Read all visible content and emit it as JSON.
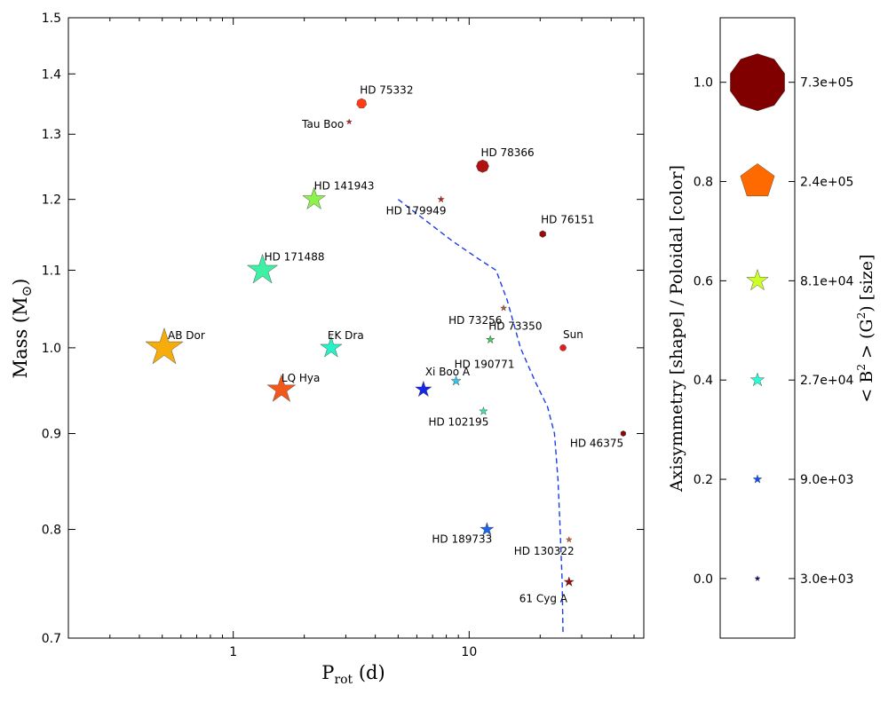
{
  "chart_data": [
    {
      "type": "scatter",
      "xscale": "log",
      "yscale": "log",
      "xlim": [
        0.2,
        55
      ],
      "ylim": [
        0.7,
        1.5
      ],
      "xlabel": {
        "main": "P",
        "sub": "rot",
        "unit": " (d)"
      },
      "ylabel": {
        "main": "Mass (M",
        "sym": "⊙",
        "end": ")"
      },
      "x_ticks": [
        {
          "value": 1,
          "label": "1"
        },
        {
          "value": 10,
          "label": "10"
        }
      ],
      "x_minor_ticks": [
        0.3,
        0.4,
        0.5,
        0.6,
        0.7,
        0.8,
        0.9,
        2,
        3,
        4,
        5,
        6,
        7,
        8,
        9,
        20,
        30,
        40,
        50
      ],
      "y_ticks": [
        {
          "value": 0.7,
          "label": "0.7"
        },
        {
          "value": 0.8,
          "label": "0.8"
        },
        {
          "value": 0.9,
          "label": "0.9"
        },
        {
          "value": 1.0,
          "label": "1.0"
        },
        {
          "value": 1.1,
          "label": "1.1"
        },
        {
          "value": 1.2,
          "label": "1.2"
        },
        {
          "value": 1.3,
          "label": "1.3"
        },
        {
          "value": 1.4,
          "label": "1.4"
        },
        {
          "value": 1.5,
          "label": "1.5"
        }
      ],
      "curve": {
        "style": "dashed",
        "color": "#1a3de6",
        "points": [
          {
            "x": 5.0,
            "y": 1.2
          },
          {
            "x": 6.5,
            "y": 1.17
          },
          {
            "x": 8.5,
            "y": 1.14
          },
          {
            "x": 11,
            "y": 1.115
          },
          {
            "x": 13,
            "y": 1.1
          },
          {
            "x": 14.5,
            "y": 1.06
          },
          {
            "x": 16.5,
            "y": 1.0
          },
          {
            "x": 19,
            "y": 0.96
          },
          {
            "x": 21.5,
            "y": 0.93
          },
          {
            "x": 23,
            "y": 0.9
          },
          {
            "x": 23.8,
            "y": 0.85
          },
          {
            "x": 24.3,
            "y": 0.8
          },
          {
            "x": 24.8,
            "y": 0.75
          },
          {
            "x": 25.0,
            "y": 0.705
          }
        ]
      },
      "points": [
        {
          "name": "AB Dor",
          "x": 0.51,
          "y": 1.0,
          "sides": 5,
          "b2": 300000,
          "color": "#f6ac0a",
          "label_dx": 4,
          "label_dy": -10,
          "anchor": "start"
        },
        {
          "name": "LQ Hya",
          "x": 1.6,
          "y": 0.95,
          "sides": 5,
          "b2": 150000,
          "color": "#f2581c",
          "label_dx": 0,
          "label_dy": -9,
          "anchor": "start"
        },
        {
          "name": "EK Dra",
          "x": 2.6,
          "y": 1.0,
          "sides": 5,
          "b2": 80000,
          "color": "#28f0c8",
          "label_dx": -4,
          "label_dy": -10,
          "anchor": "start"
        },
        {
          "name": "HD 171488",
          "x": 1.33,
          "y": 1.1,
          "sides": 5,
          "b2": 180000,
          "color": "#3df0a4",
          "label_dx": 2,
          "label_dy": -11,
          "anchor": "start"
        },
        {
          "name": "HD 141943",
          "x": 2.2,
          "y": 1.2,
          "sides": 5,
          "b2": 90000,
          "color": "#8cf24c",
          "label_dx": 0,
          "label_dy": -11,
          "anchor": "start"
        },
        {
          "name": "Tau Boo",
          "x": 3.1,
          "y": 1.32,
          "sides": 5,
          "b2": 3000,
          "color": "#e01a0a",
          "label_dx": -6,
          "label_dy": 7,
          "anchor": "end"
        },
        {
          "name": "HD 75332",
          "x": 3.5,
          "y": 1.35,
          "sides": 7,
          "b2": 12000,
          "color": "#ff3c14",
          "label_dx": -2,
          "label_dy": -11,
          "anchor": "start"
        },
        {
          "name": "HD 179949",
          "x": 7.6,
          "y": 1.2,
          "sides": 5,
          "b2": 4500,
          "color": "#dd1a12",
          "label_dx": -62,
          "label_dy": 17,
          "anchor": "start"
        },
        {
          "name": "HD 78366",
          "x": 11.4,
          "y": 1.25,
          "sides": 8,
          "b2": 20000,
          "color": "#b01212",
          "label_dx": -2,
          "label_dy": -11,
          "anchor": "start"
        },
        {
          "name": "HD 76151",
          "x": 20.5,
          "y": 1.15,
          "sides": 6,
          "b2": 5000,
          "color": "#960c0c",
          "label_dx": -2,
          "label_dy": -12,
          "anchor": "start"
        },
        {
          "name": "HD 73256",
          "x": 14,
          "y": 1.05,
          "sides": 5,
          "b2": 4000,
          "color": "#b85a28",
          "label_dx": -62,
          "label_dy": 18,
          "anchor": "start"
        },
        {
          "name": "HD 73350",
          "x": 12.3,
          "y": 1.01,
          "sides": 5,
          "b2": 8000,
          "color": "#44cc66",
          "label_dx": -2,
          "label_dy": -11,
          "anchor": "start"
        },
        {
          "name": "Sun",
          "x": 25,
          "y": 1.0,
          "sides": 12,
          "b2": 4000,
          "color": "#e02020",
          "label_dx": 0,
          "label_dy": -11,
          "anchor": "start"
        },
        {
          "name": "HD 190771",
          "x": 8.8,
          "y": 0.96,
          "sides": 5,
          "b2": 12000,
          "color": "#30c8f0",
          "label_dx": -2,
          "label_dy": -15,
          "anchor": "start"
        },
        {
          "name": "Xi Boo A",
          "x": 6.4,
          "y": 0.95,
          "sides": 5,
          "b2": 40000,
          "color": "#1428e6",
          "label_dx": 2,
          "label_dy": -16,
          "anchor": "start"
        },
        {
          "name": "HD 102195",
          "x": 11.5,
          "y": 0.925,
          "sides": 5,
          "b2": 8000,
          "color": "#3ce8a0",
          "label_dx": -62,
          "label_dy": 16,
          "anchor": "start"
        },
        {
          "name": "HD 46375",
          "x": 45,
          "y": 0.9,
          "sides": 6,
          "b2": 3000,
          "color": "#8a0808",
          "label_dx": -60,
          "label_dy": 15,
          "anchor": "start"
        },
        {
          "name": "HD 189733",
          "x": 11.9,
          "y": 0.8,
          "sides": 5,
          "b2": 25000,
          "color": "#1e64e6",
          "label_dx": -62,
          "label_dy": 15,
          "anchor": "start"
        },
        {
          "name": "HD 130322",
          "x": 26.5,
          "y": 0.79,
          "sides": 5,
          "b2": 3500,
          "color": "#f05a22",
          "label_dx": -62,
          "label_dy": 17,
          "anchor": "start"
        },
        {
          "name": "61 Cyg A",
          "x": 26.5,
          "y": 0.75,
          "sides": 5,
          "b2": 12000,
          "color": "#9a0a0a",
          "label_dx": -56,
          "label_dy": 23,
          "anchor": "start"
        }
      ]
    },
    {
      "type": "legend",
      "left_label": "Axisymmetry [shape] / Poloidal [color]",
      "right_label": {
        "pre": "< B",
        "sup": "2",
        "post": " >  (G",
        "sup2": "2",
        "end": ")  [size]"
      },
      "ylim": [
        -0.12,
        1.13
      ],
      "items": [
        {
          "value": 1.0,
          "tick": "1.0",
          "label": "7.3e+05",
          "sides": 10,
          "b2": 730000,
          "shape": "polygon",
          "color": "#800000"
        },
        {
          "value": 0.8,
          "tick": "0.8",
          "label": "2.4e+05",
          "sides": 5,
          "b2": 240000,
          "shape": "polygon",
          "color": "#ff6a00"
        },
        {
          "value": 0.6,
          "tick": "0.6",
          "label": "8.1e+04",
          "sides": 5,
          "b2": 81000,
          "shape": "star",
          "color": "#ccff26"
        },
        {
          "value": 0.4,
          "tick": "0.4",
          "label": "2.7e+04",
          "sides": 5,
          "b2": 27000,
          "shape": "star",
          "color": "#26ffd6"
        },
        {
          "value": 0.2,
          "tick": "0.2",
          "label": "9.0e+03",
          "sides": 5,
          "b2": 9000,
          "shape": "star",
          "color": "#0a50ff"
        },
        {
          "value": 0.0,
          "tick": "0.0",
          "label": "3.0e+03",
          "sides": 5,
          "b2": 3000,
          "shape": "star",
          "color": "#00008a"
        }
      ]
    }
  ]
}
